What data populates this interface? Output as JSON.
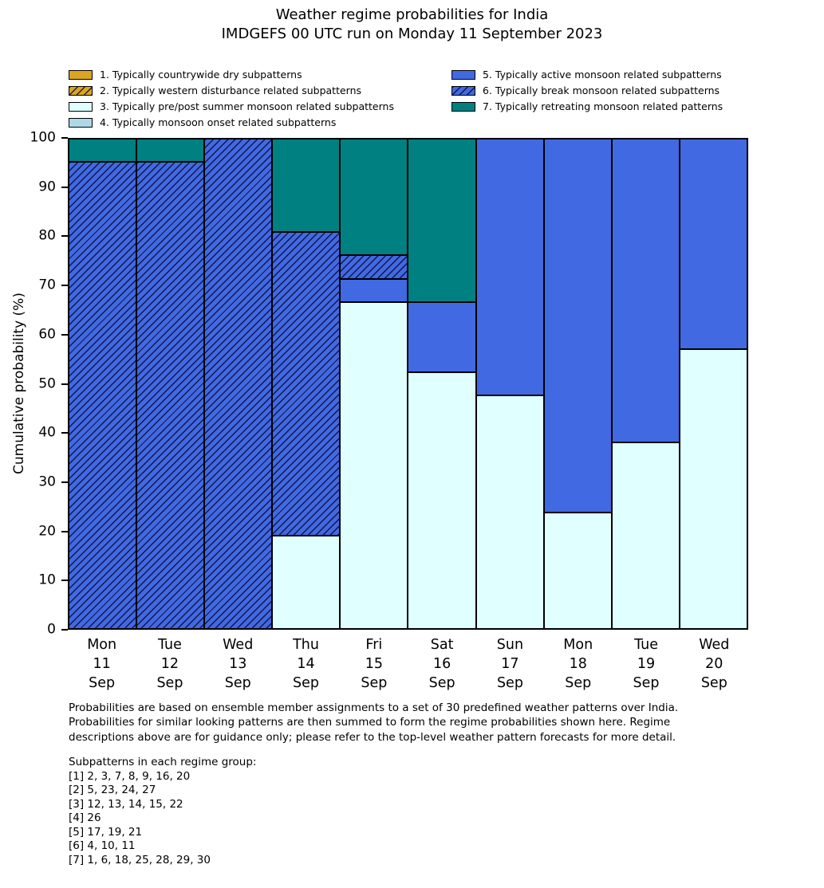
{
  "chart_data": {
    "type": "bar",
    "stacked": true,
    "title": "Weather regime probabilities for India",
    "subtitle": "IMDGEFS 00 UTC run on Monday 11 September 2023",
    "ylabel": "Cumulative probability (%)",
    "ylim": [
      0,
      100
    ],
    "yticks": [
      0,
      10,
      20,
      30,
      40,
      50,
      60,
      70,
      80,
      90,
      100
    ],
    "grid": false,
    "legend_position": "top",
    "categories": [
      "Mon 11 Sep",
      "Tue 12 Sep",
      "Wed 13 Sep",
      "Thu 14 Sep",
      "Fri 15 Sep",
      "Sat 16 Sep",
      "Sun 17 Sep",
      "Mon 18 Sep",
      "Tue 19 Sep",
      "Wed 20 Sep"
    ],
    "series": [
      {
        "name": "1. Typically countrywide dry subpatterns",
        "color": "#DAA520",
        "hatch": false,
        "values": [
          0,
          0,
          0,
          0,
          0,
          0,
          0,
          0,
          0,
          0
        ]
      },
      {
        "name": "2. Typically western disturbance related subpatterns",
        "color": "#DAA520",
        "hatch": true,
        "values": [
          0,
          0,
          0,
          0,
          0,
          0,
          0,
          0,
          0,
          0
        ]
      },
      {
        "name": "3. Typically pre/post summer monsoon related subpatterns",
        "color": "#E0FFFF",
        "hatch": false,
        "values": [
          0,
          0,
          0,
          19.048,
          66.667,
          52.381,
          47.619,
          23.81,
          38.095,
          57.143
        ]
      },
      {
        "name": "4. Typically monsoon onset related subpatterns",
        "color": "#ADD8E6",
        "hatch": false,
        "values": [
          0,
          0,
          0,
          0,
          0,
          0,
          0,
          0,
          0,
          0
        ]
      },
      {
        "name": "5. Typically active monsoon related subpatterns",
        "color": "#4169E1",
        "hatch": false,
        "values": [
          0,
          0,
          0,
          0,
          4.762,
          14.286,
          52.381,
          76.19,
          61.905,
          42.857
        ]
      },
      {
        "name": "6. Typically break monsoon related subpatterns",
        "color": "#4169E1",
        "hatch": true,
        "values": [
          95.238,
          95.238,
          100,
          61.905,
          4.762,
          0,
          0,
          0,
          0,
          0
        ]
      },
      {
        "name": "7. Typically retreating monsoon related patterns",
        "color": "#008080",
        "hatch": false,
        "values": [
          4.762,
          4.762,
          0,
          19.048,
          23.81,
          33.333,
          0,
          0,
          0,
          0
        ]
      }
    ]
  },
  "footer": {
    "lines": [
      "Probabilities are based on ensemble member assignments to a set of 30 predefined weather patterns over India.",
      "Probabilities for similar looking patterns are then summed to form the regime probabilities shown here. Regime",
      "descriptions above are for guidance only; please refer to the top-level weather pattern forecasts for more detail."
    ],
    "subpatterns_title": "Subpatterns in each regime group:",
    "subpatterns": [
      "[1] 2, 3, 7, 8, 9, 16, 20",
      "[2] 5, 23, 24, 27",
      "[3] 12, 13, 14, 15, 22",
      "[4] 26",
      "[5] 17, 19, 21",
      "[6] 4, 10, 11",
      "[7] 1, 6, 18, 25, 28, 29, 30"
    ]
  }
}
